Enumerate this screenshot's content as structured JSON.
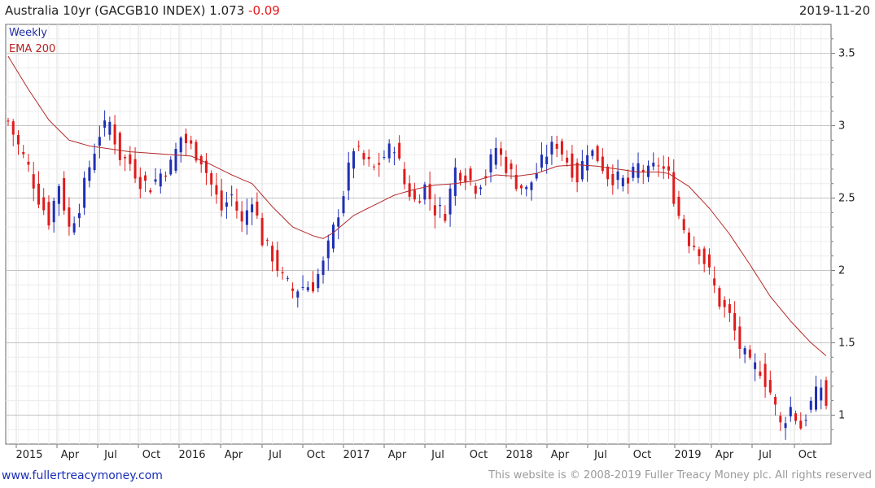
{
  "header": {
    "title": "Australia 10yr (GACGB10 INDEX) 1.073",
    "change": "-0.09",
    "date": "2019-11-20"
  },
  "footer": {
    "link": "www.fullertreacymoney.com",
    "copyright": "This website is © 2008-2019 Fuller Treacy Money plc. All rights reserved"
  },
  "colors": {
    "up": "#1f2fb5",
    "down": "#e01b1b",
    "ema": "#b52a2a",
    "grid": "#d9d9d9"
  },
  "chart_data": {
    "type": "candlestick",
    "period": "Weekly",
    "y_ticks": [
      "1",
      "1.5",
      "2",
      "2.5",
      "3",
      "3.5"
    ],
    "ylim": [
      0.8,
      3.7
    ],
    "x_ticks": [
      "2015",
      "Apr",
      "Jul",
      "Oct",
      "2016",
      "Apr",
      "Jul",
      "Oct",
      "2017",
      "Apr",
      "Jul",
      "Oct",
      "2018",
      "Apr",
      "Jul",
      "Oct",
      "2019",
      "Apr",
      "Jul",
      "Oct"
    ],
    "legend": [
      "Weekly",
      "EMA 200"
    ],
    "grid": true,
    "close_series": [
      [
        0,
        3.03
      ],
      [
        2,
        2.86
      ],
      [
        4,
        2.71
      ],
      [
        6,
        2.5
      ],
      [
        8,
        2.35
      ],
      [
        10,
        2.6
      ],
      [
        12,
        2.29
      ],
      [
        14,
        2.45
      ],
      [
        16,
        2.72
      ],
      [
        18,
        2.95
      ],
      [
        20,
        3.02
      ],
      [
        22,
        2.79
      ],
      [
        24,
        2.74
      ],
      [
        26,
        2.62
      ],
      [
        28,
        2.58
      ],
      [
        30,
        2.67
      ],
      [
        32,
        2.73
      ],
      [
        34,
        2.92
      ],
      [
        36,
        2.85
      ],
      [
        38,
        2.77
      ],
      [
        40,
        2.59
      ],
      [
        42,
        2.42
      ],
      [
        44,
        2.52
      ],
      [
        46,
        2.32
      ],
      [
        48,
        2.51
      ],
      [
        50,
        2.21
      ],
      [
        52,
        2.1
      ],
      [
        54,
        1.94
      ],
      [
        56,
        1.86
      ],
      [
        58,
        1.89
      ],
      [
        60,
        1.9
      ],
      [
        62,
        2.04
      ],
      [
        64,
        2.28
      ],
      [
        66,
        2.54
      ],
      [
        68,
        2.85
      ],
      [
        70,
        2.76
      ],
      [
        72,
        2.7
      ],
      [
        74,
        2.79
      ],
      [
        76,
        2.87
      ],
      [
        78,
        2.6
      ],
      [
        80,
        2.48
      ],
      [
        82,
        2.58
      ],
      [
        84,
        2.42
      ],
      [
        86,
        2.4
      ],
      [
        88,
        2.7
      ],
      [
        90,
        2.66
      ],
      [
        92,
        2.58
      ],
      [
        94,
        2.66
      ],
      [
        96,
        2.85
      ],
      [
        98,
        2.72
      ],
      [
        100,
        2.61
      ],
      [
        102,
        2.55
      ],
      [
        104,
        2.68
      ],
      [
        106,
        2.81
      ],
      [
        108,
        2.88
      ],
      [
        110,
        2.76
      ],
      [
        112,
        2.64
      ],
      [
        114,
        2.84
      ],
      [
        116,
        2.78
      ],
      [
        118,
        2.66
      ],
      [
        120,
        2.63
      ],
      [
        122,
        2.6
      ],
      [
        124,
        2.72
      ],
      [
        126,
        2.67
      ],
      [
        128,
        2.74
      ],
      [
        130,
        2.65
      ],
      [
        132,
        2.38
      ],
      [
        134,
        2.21
      ],
      [
        136,
        2.15
      ],
      [
        138,
        1.98
      ],
      [
        140,
        1.78
      ],
      [
        142,
        1.68
      ],
      [
        144,
        1.47
      ],
      [
        146,
        1.34
      ],
      [
        148,
        1.32
      ],
      [
        150,
        1.16
      ],
      [
        152,
        0.93
      ],
      [
        154,
        1.05
      ],
      [
        156,
        0.92
      ],
      [
        158,
        1.08
      ],
      [
        160,
        1.2
      ],
      [
        161,
        1.073
      ]
    ],
    "ema_200": [
      [
        0,
        3.48
      ],
      [
        4,
        3.25
      ],
      [
        8,
        3.04
      ],
      [
        12,
        2.9
      ],
      [
        16,
        2.86
      ],
      [
        20,
        2.84
      ],
      [
        24,
        2.82
      ],
      [
        28,
        2.81
      ],
      [
        32,
        2.8
      ],
      [
        36,
        2.79
      ],
      [
        40,
        2.73
      ],
      [
        44,
        2.66
      ],
      [
        48,
        2.6
      ],
      [
        52,
        2.44
      ],
      [
        56,
        2.3
      ],
      [
        60,
        2.24
      ],
      [
        62,
        2.22
      ],
      [
        64,
        2.26
      ],
      [
        68,
        2.38
      ],
      [
        72,
        2.45
      ],
      [
        76,
        2.52
      ],
      [
        80,
        2.56
      ],
      [
        84,
        2.59
      ],
      [
        88,
        2.6
      ],
      [
        92,
        2.62
      ],
      [
        96,
        2.66
      ],
      [
        100,
        2.65
      ],
      [
        104,
        2.67
      ],
      [
        108,
        2.72
      ],
      [
        112,
        2.73
      ],
      [
        116,
        2.72
      ],
      [
        120,
        2.7
      ],
      [
        124,
        2.68
      ],
      [
        128,
        2.68
      ],
      [
        130,
        2.67
      ],
      [
        134,
        2.58
      ],
      [
        138,
        2.43
      ],
      [
        142,
        2.25
      ],
      [
        146,
        2.04
      ],
      [
        150,
        1.82
      ],
      [
        154,
        1.65
      ],
      [
        158,
        1.5
      ],
      [
        161,
        1.41
      ]
    ]
  }
}
